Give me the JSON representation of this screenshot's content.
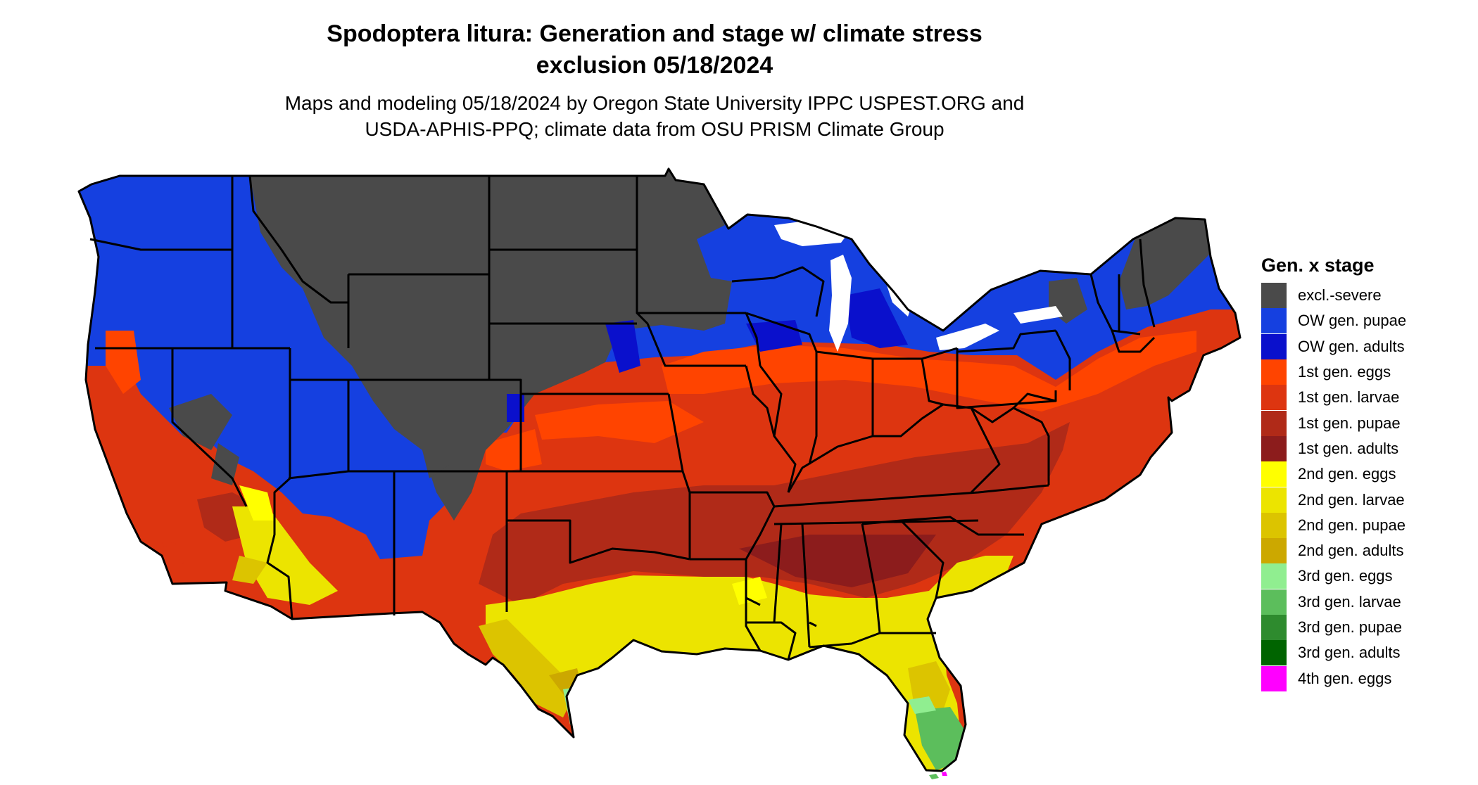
{
  "title_line1": "Spodoptera litura: Generation and stage w/ climate stress",
  "title_line2": "exclusion 05/18/2024",
  "subtitle_line1": "Maps and modeling 05/18/2024 by Oregon State University IPPC USPEST.ORG and",
  "subtitle_line2": "USDA-APHIS-PPQ; climate data from OSU PRISM Climate Group",
  "legend": {
    "title": "Gen. x stage",
    "items": [
      {
        "label": "excl.-severe",
        "color": "#4a4a4a"
      },
      {
        "label": "OW gen. pupae",
        "color": "#1540e0"
      },
      {
        "label": "OW gen. adults",
        "color": "#0a10cc"
      },
      {
        "label": "1st gen. eggs",
        "color": "#ff4400"
      },
      {
        "label": "1st gen. larvae",
        "color": "#dd3510"
      },
      {
        "label": "1st gen. pupae",
        "color": "#b02a18"
      },
      {
        "label": "1st gen. adults",
        "color": "#8c1c1c"
      },
      {
        "label": "2nd gen. eggs",
        "color": "#ffff00"
      },
      {
        "label": "2nd gen. larvae",
        "color": "#ece400"
      },
      {
        "label": "2nd gen. pupae",
        "color": "#dcc400"
      },
      {
        "label": "2nd gen. adults",
        "color": "#cca800"
      },
      {
        "label": "3rd gen. eggs",
        "color": "#90ee90"
      },
      {
        "label": "3rd gen. larvae",
        "color": "#5cbe5c"
      },
      {
        "label": "3rd gen. pupae",
        "color": "#2e8b2e"
      },
      {
        "label": "3rd gen. adults",
        "color": "#006400"
      },
      {
        "label": "4th gen. eggs",
        "color": "#ff00ff"
      }
    ]
  }
}
